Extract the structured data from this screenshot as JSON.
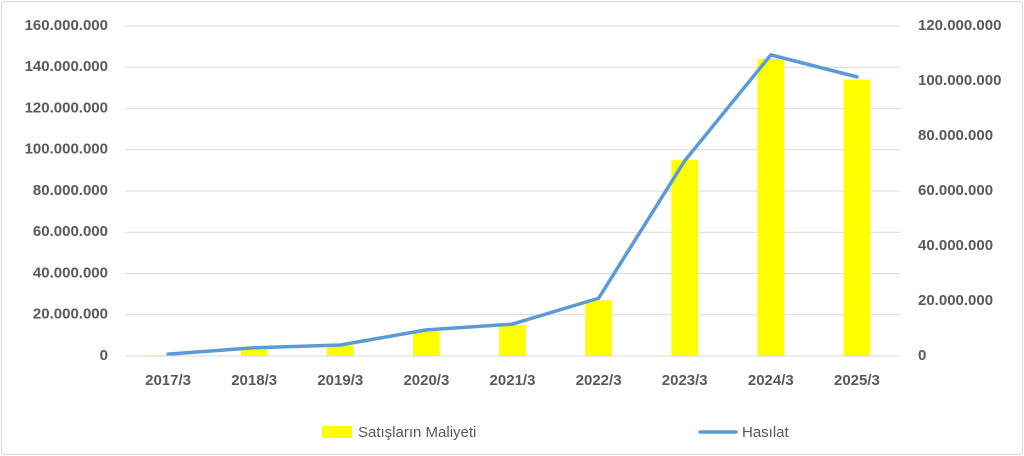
{
  "chart_data": {
    "type": "bar-line",
    "categories": [
      "2017/3",
      "2018/3",
      "2019/3",
      "2020/3",
      "2021/3",
      "2022/3",
      "2023/3",
      "2024/3",
      "2025/3"
    ],
    "series": [
      {
        "name": "Satışların Maliyeti",
        "type": "bar",
        "color": "#ffff00",
        "axis": "y",
        "values": [
          500000,
          4000000,
          5000000,
          12000000,
          15000000,
          27000000,
          95000000,
          144000000,
          134000000
        ]
      },
      {
        "name": "Hasılat",
        "type": "line",
        "color": "#5b9bd5",
        "axis": "y2",
        "values": [
          700000,
          3000000,
          4000000,
          9500000,
          11600000,
          21000000,
          71000000,
          109500000,
          101500000
        ]
      }
    ],
    "ylim": [
      0,
      160000000
    ],
    "yticks": [
      0,
      {
        "value": 20000000,
        "label": "20.000.000"
      },
      {
        "value": 40000000,
        "label": "40.000.000"
      },
      {
        "value": 60000000,
        "label": "60.000.000"
      },
      {
        "value": 80000000,
        "label": "80.000.000"
      },
      {
        "value": 100000000,
        "label": "100.000.000"
      },
      {
        "value": 120000000,
        "label": "120.000.000"
      },
      {
        "value": 140000000,
        "label": "140.000.000"
      },
      {
        "value": 160000000,
        "label": "160.000.000"
      }
    ],
    "y2lim": [
      0,
      120000000
    ],
    "y2ticks": [
      0,
      {
        "value": 20000000,
        "label": "20.000.000"
      },
      {
        "value": 40000000,
        "label": "40.000.000"
      },
      {
        "value": 60000000,
        "label": "60.000.000"
      },
      {
        "value": 80000000,
        "label": "80.000.000"
      },
      {
        "value": 100000000,
        "label": "100.000.000"
      },
      {
        "value": 120000000,
        "label": "120.000.000"
      }
    ],
    "grid": true,
    "legend": "bottom"
  }
}
